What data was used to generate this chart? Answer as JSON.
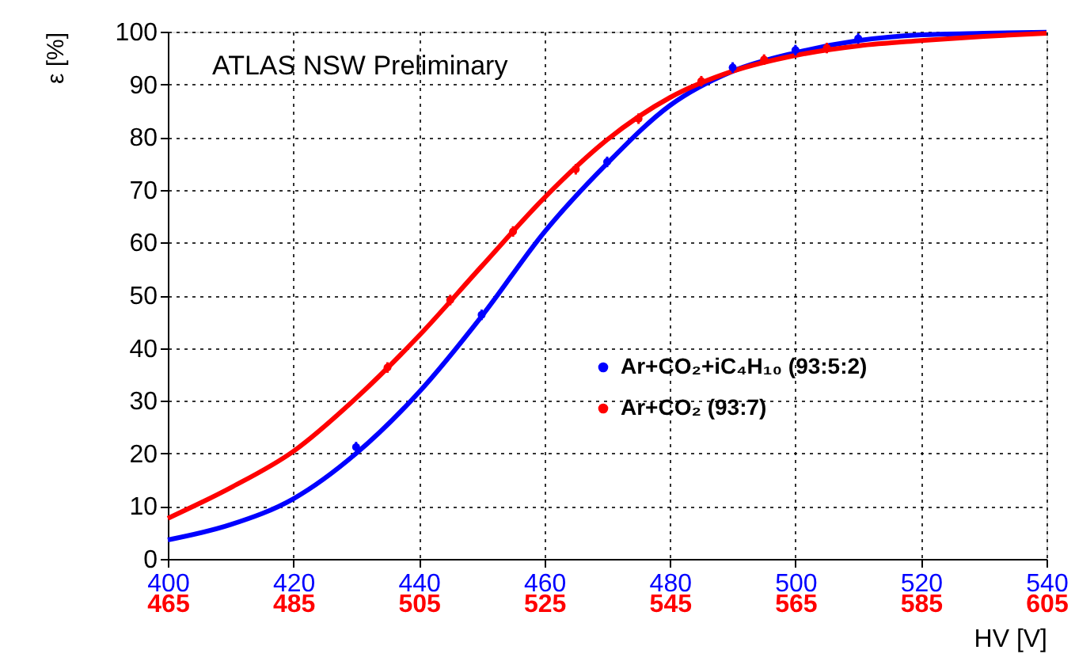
{
  "chart_data": {
    "type": "scatter",
    "xlabel": "HV [V]",
    "ylabel": "ε [%]",
    "annotations": [
      "ATLAS NSW Preliminary"
    ],
    "xlim": [
      400,
      540
    ],
    "xticks": [
      400,
      420,
      440,
      460,
      480,
      500,
      520,
      540
    ],
    "x2lim": [
      465,
      605
    ],
    "x2ticks": [
      465,
      485,
      505,
      525,
      545,
      565,
      585,
      605
    ],
    "ylim": [
      0,
      100
    ],
    "yticks": [
      0,
      10,
      20,
      30,
      40,
      50,
      60,
      70,
      80,
      90,
      100
    ],
    "grid": true,
    "legend": "right",
    "series": [
      {
        "marker": "circle",
        "name": "Ar+CO₂+iC₄H₁₀ (93:5:2)",
        "color": "#0000ff",
        "x": [
          430,
          450,
          470,
          490,
          500,
          510
        ],
        "values": [
          21.2,
          46.3,
          75.3,
          93.2,
          96.5,
          98.7
        ],
        "errors": [
          1,
          1,
          1,
          1,
          1,
          1
        ]
      },
      {
        "axis": "x2",
        "marker": "circle",
        "name": "Ar+CO₂ (93:7)",
        "color": "#ff0000",
        "x": [
          500,
          510,
          520,
          530,
          540,
          550,
          560,
          570
        ],
        "values": [
          36.3,
          49.1,
          62.1,
          73.9,
          83.5,
          90.6,
          94.7,
          96.9
        ],
        "errors": [
          1,
          1,
          1,
          1,
          1,
          1,
          1,
          1
        ]
      },
      {
        "type": "line",
        "marker": "none",
        "color": "#0000ff",
        "x": [
          400,
          410,
          420,
          430,
          440,
          450,
          460,
          470,
          480,
          490,
          500,
          510,
          520,
          530,
          540
        ],
        "values": [
          3.6,
          6.5,
          11.4,
          20.0,
          31.6,
          46.0,
          62.0,
          75.0,
          86.0,
          92.5,
          96.0,
          98.3,
          99.4,
          99.7,
          99.9
        ]
      },
      {
        "type": "line",
        "marker": "none",
        "axis": "x2",
        "color": "#ff0000",
        "x": [
          465,
          475,
          485,
          495,
          505,
          515,
          525,
          535,
          545,
          555,
          565,
          575,
          585,
          595,
          605
        ],
        "values": [
          7.7,
          13.5,
          20.4,
          30.5,
          42.3,
          55.5,
          68.5,
          79.5,
          87.5,
          92.5,
          95.5,
          97.3,
          98.3,
          99.1,
          99.7
        ]
      }
    ]
  }
}
